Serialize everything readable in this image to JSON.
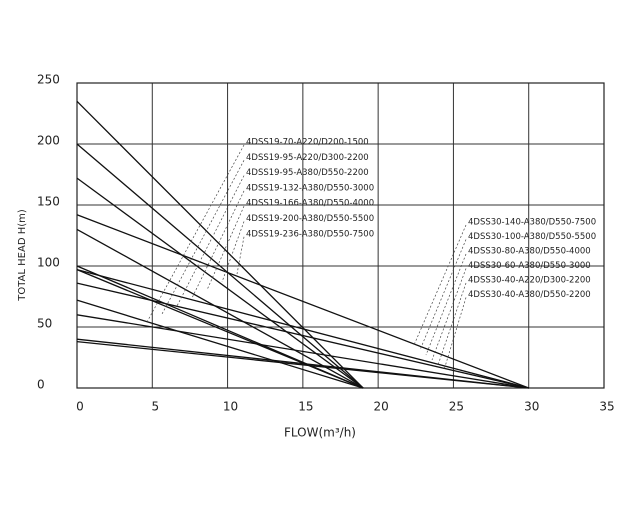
{
  "chart_data": {
    "type": "line",
    "xlabel": "FLOW(m³/h)",
    "ylabel": "TOTAL HEAD H(m)",
    "xlim": [
      0,
      35
    ],
    "xticks": [
      0,
      5,
      10,
      15,
      20,
      25,
      30,
      35
    ],
    "ylim": [
      0,
      250
    ],
    "yticks": [
      0,
      50,
      100,
      150,
      200,
      250
    ],
    "grid": true,
    "series": [
      {
        "name": "4DSS19-70-A220/D200-1500",
        "color": "#111111",
        "x": [
          0,
          19
        ],
        "values": [
          72,
          0
        ]
      },
      {
        "name": "4DSS19-95-A220/D300-2200",
        "color": "#111111",
        "x": [
          0,
          19
        ],
        "values": [
          97,
          0
        ]
      },
      {
        "name": "4DSS19-95-A380/D550-2200",
        "color": "#111111",
        "x": [
          0,
          19
        ],
        "values": [
          100,
          0
        ]
      },
      {
        "name": "4DSS19-132-A380/D550-3000",
        "color": "#111111",
        "x": [
          0,
          19
        ],
        "values": [
          130,
          0
        ]
      },
      {
        "name": "4DSS19-166-A380/D550-4000",
        "color": "#111111",
        "x": [
          0,
          19
        ],
        "values": [
          172,
          0
        ]
      },
      {
        "name": "4DSS19-200-A380/D550-5500",
        "color": "#111111",
        "x": [
          0,
          19
        ],
        "values": [
          200,
          0
        ]
      },
      {
        "name": "4DSS19-236-A380/D550-7500",
        "color": "#111111",
        "x": [
          0,
          19
        ],
        "values": [
          235,
          0
        ]
      },
      {
        "name": "4DSS30-140-A380/D550-7500",
        "color": "#111111",
        "x": [
          0,
          30
        ],
        "values": [
          142,
          0
        ]
      },
      {
        "name": "4DSS30-100-A380/D550-5500",
        "color": "#111111",
        "x": [
          0,
          30
        ],
        "values": [
          97,
          0
        ]
      },
      {
        "name": "4DSS30-80-A380/D550-4000",
        "color": "#111111",
        "x": [
          0,
          30
        ],
        "values": [
          86,
          0
        ]
      },
      {
        "name": "4DSS30-60-A380/D550-3000",
        "color": "#111111",
        "x": [
          0,
          30
        ],
        "values": [
          60,
          0
        ]
      },
      {
        "name": "4DSS30-40-A220/D300-2200",
        "color": "#111111",
        "x": [
          0,
          30
        ],
        "values": [
          40,
          0
        ]
      },
      {
        "name": "4DSS30-40-A380/D550-2200",
        "color": "#111111",
        "x": [
          0,
          30
        ],
        "values": [
          38,
          0
        ]
      }
    ]
  }
}
